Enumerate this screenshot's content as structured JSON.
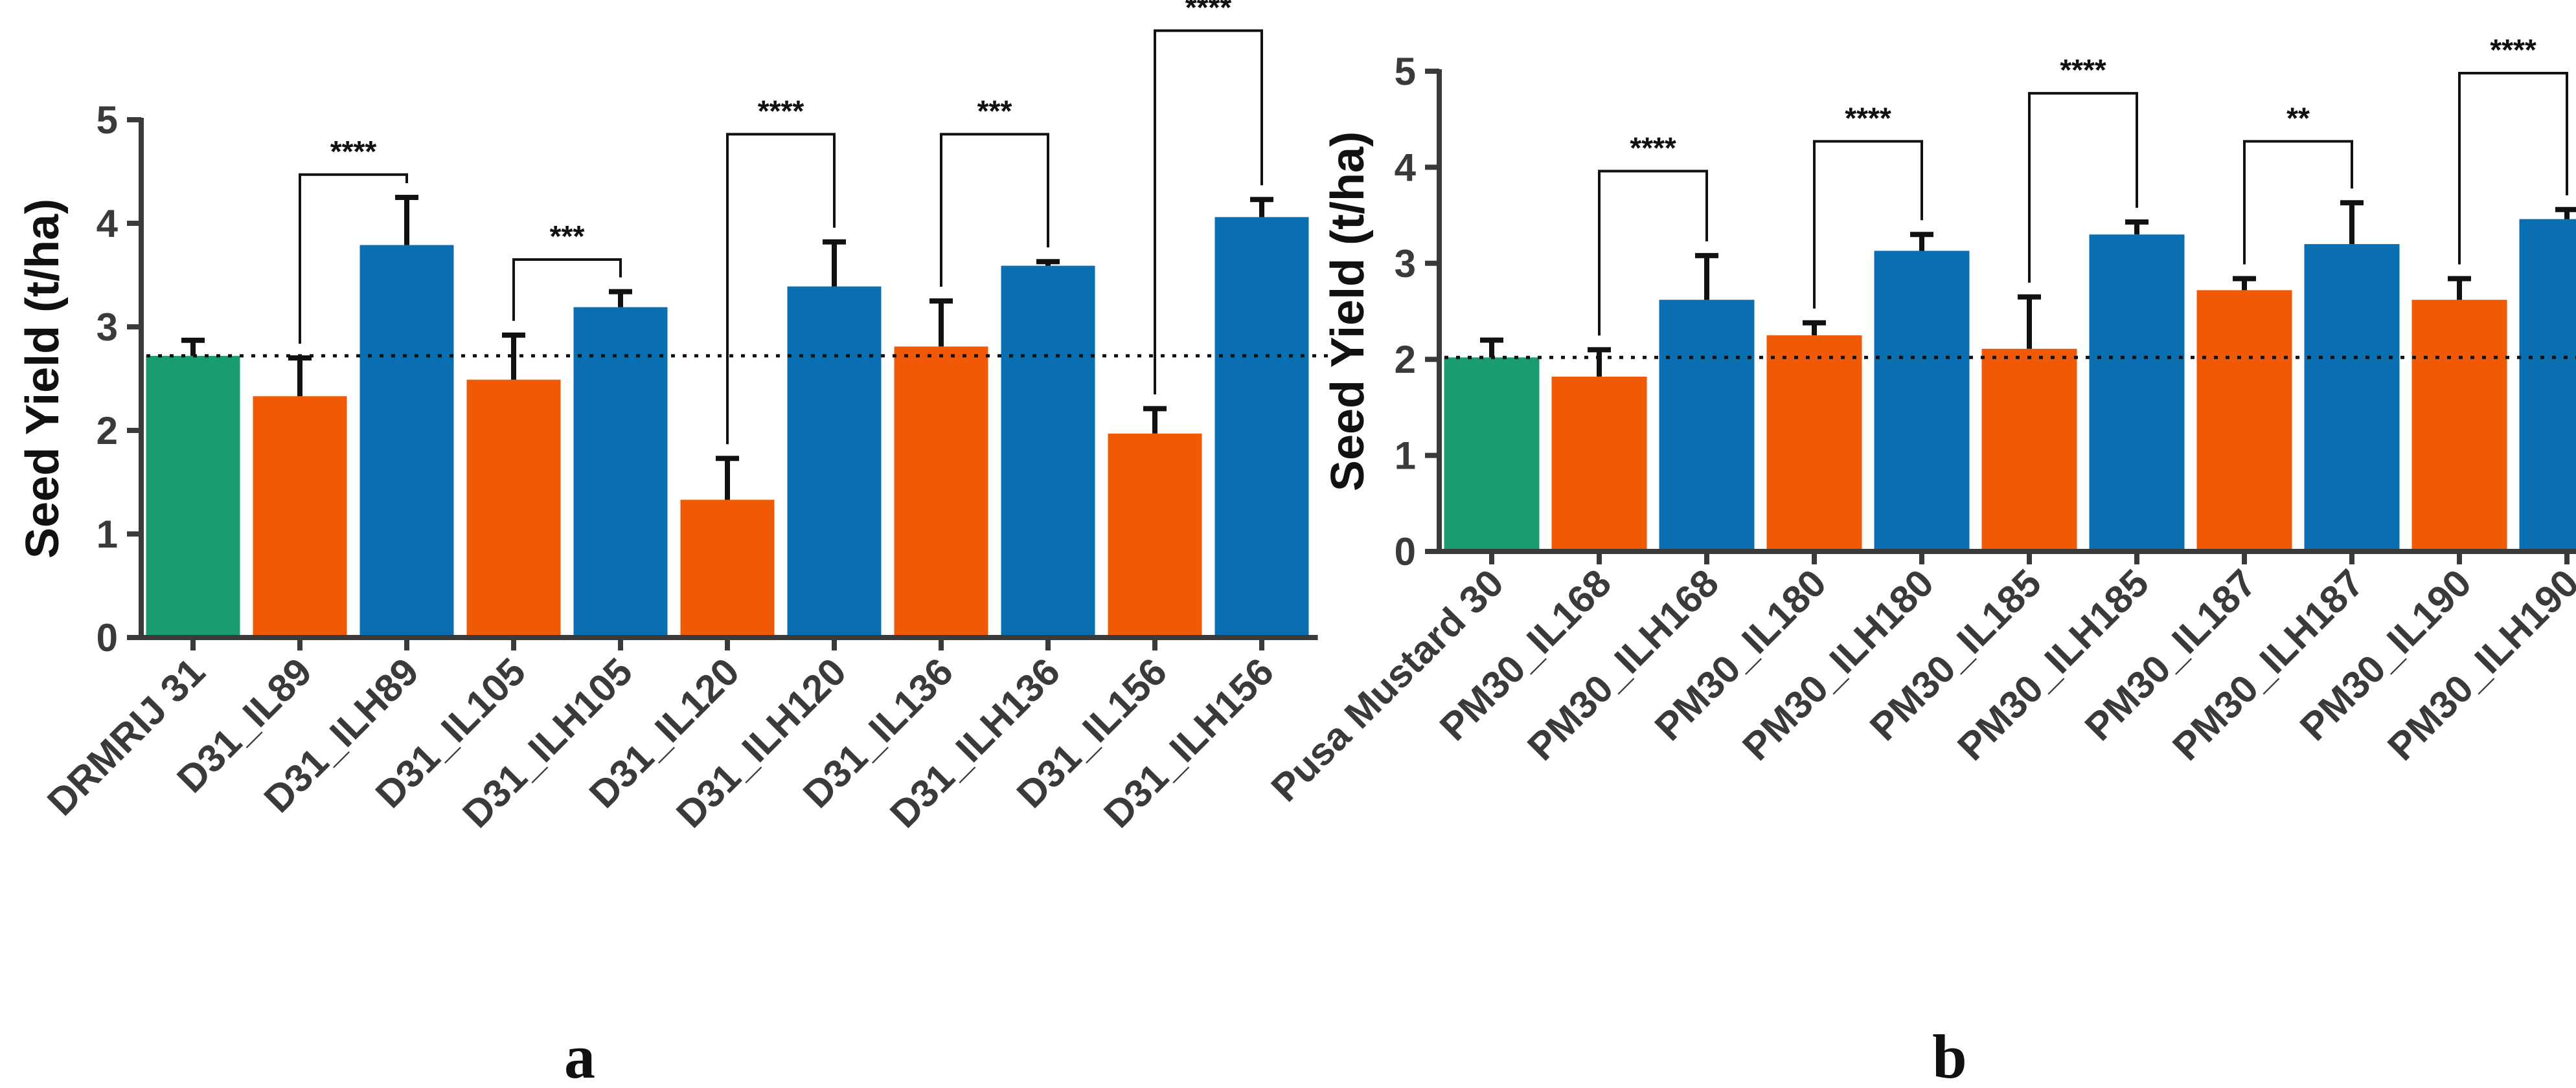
{
  "colors": {
    "check": "#1a9c6e",
    "IL": "#f05a06",
    "ILH": "#0a6fb0",
    "axis": "#3a3a3a",
    "reference_line": "#111111"
  },
  "chart_data": [
    {
      "type": "bar",
      "panel_label": "a",
      "ylabel": "Seed Yield (t/ha)",
      "ylim": [
        0,
        5
      ],
      "yticks": [
        "0",
        "1",
        "2",
        "3",
        "4",
        "5"
      ],
      "grid": false,
      "reference_line_value": 2.72,
      "categories": [
        "DRMRIJ 31",
        "D31_IL89",
        "D31_ILH89",
        "D31_IL105",
        "D31_ILH105",
        "D31_IL120",
        "D31_ILH120",
        "D31_IL136",
        "D31_ILH136",
        "D31_IL156",
        "D31_ILH156"
      ],
      "groups": [
        "check",
        "IL",
        "ILH",
        "IL",
        "ILH",
        "IL",
        "ILH",
        "IL",
        "ILH",
        "IL",
        "ILH"
      ],
      "values": [
        2.72,
        2.33,
        3.79,
        2.49,
        3.19,
        1.33,
        3.39,
        2.81,
        3.59,
        1.97,
        4.06
      ],
      "errors": [
        0.15,
        0.37,
        0.46,
        0.43,
        0.15,
        0.4,
        0.43,
        0.44,
        0.04,
        0.24,
        0.17
      ],
      "significance": [
        {
          "from": 1,
          "to": 2,
          "label": "****",
          "level": 4.47
        },
        {
          "from": 3,
          "to": 4,
          "label": "***",
          "level": 3.65
        },
        {
          "from": 5,
          "to": 6,
          "label": "****",
          "level": 4.86
        },
        {
          "from": 7,
          "to": 8,
          "label": "***",
          "level": 4.86
        },
        {
          "from": 9,
          "to": 10,
          "label": "****",
          "level": 5.86
        }
      ]
    },
    {
      "type": "bar",
      "panel_label": "b",
      "ylabel": "Seed Yield (t/ha)",
      "ylim": [
        0,
        5
      ],
      "yticks": [
        "0",
        "1",
        "2",
        "3",
        "4",
        "5"
      ],
      "grid": false,
      "reference_line_value": 2.02,
      "categories": [
        "Pusa Mustard 30",
        "PM30_IL168",
        "PM30_ILH168",
        "PM30_IL180",
        "PM30_ILH180",
        "PM30_IL185",
        "PM30_ILH185",
        "PM30_IL187",
        "PM30_ILH187",
        "PM30_IL190",
        "PM30_ILH190"
      ],
      "groups": [
        "check",
        "IL",
        "ILH",
        "IL",
        "ILH",
        "IL",
        "ILH",
        "IL",
        "ILH",
        "IL",
        "ILH"
      ],
      "values": [
        2.02,
        1.82,
        2.62,
        2.25,
        3.13,
        2.11,
        3.3,
        2.72,
        3.2,
        2.62,
        3.46
      ],
      "errors": [
        0.18,
        0.28,
        0.46,
        0.13,
        0.17,
        0.54,
        0.13,
        0.12,
        0.43,
        0.22,
        0.1
      ],
      "significance": [
        {
          "from": 1,
          "to": 2,
          "label": "****",
          "level": 3.96
        },
        {
          "from": 3,
          "to": 4,
          "label": "****",
          "level": 4.27
        },
        {
          "from": 5,
          "to": 6,
          "label": "****",
          "level": 4.77
        },
        {
          "from": 7,
          "to": 8,
          "label": "**",
          "level": 4.27
        },
        {
          "from": 9,
          "to": 10,
          "label": "****",
          "level": 4.98
        }
      ]
    }
  ]
}
